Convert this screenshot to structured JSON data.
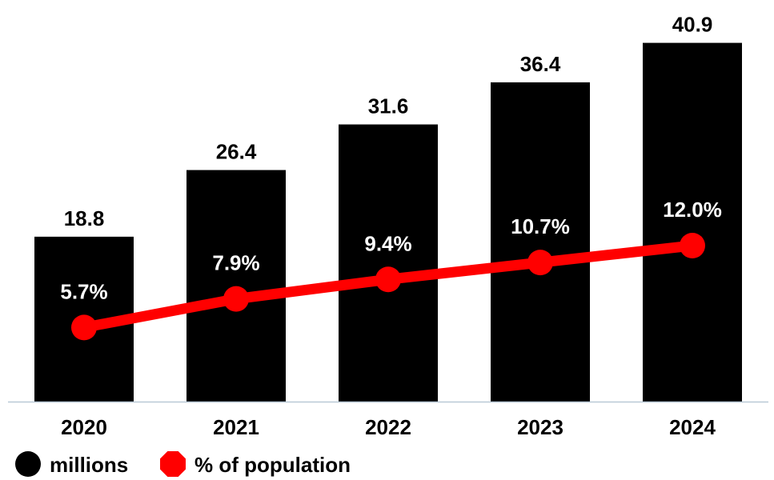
{
  "chart_data": {
    "type": "bar",
    "categories": [
      "2020",
      "2021",
      "2022",
      "2023",
      "2024"
    ],
    "series": [
      {
        "name": "millions",
        "type": "bar",
        "values": [
          18.8,
          26.4,
          31.6,
          36.4,
          40.9
        ],
        "labels": [
          "18.8",
          "26.4",
          "31.6",
          "36.4",
          "40.9"
        ],
        "color": "#000000"
      },
      {
        "name": "% of population",
        "type": "line",
        "values": [
          5.7,
          7.9,
          9.4,
          10.7,
          12.0
        ],
        "labels": [
          "5.7%",
          "7.9%",
          "9.4%",
          "10.7%",
          "12.0%"
        ],
        "color": "#ff0000"
      }
    ],
    "ylim": [
      0,
      41.5
    ],
    "line_ylim": [
      0,
      28
    ],
    "grid": false,
    "legend_position": "bottom-left",
    "axis_color": "#b9c9d6"
  }
}
